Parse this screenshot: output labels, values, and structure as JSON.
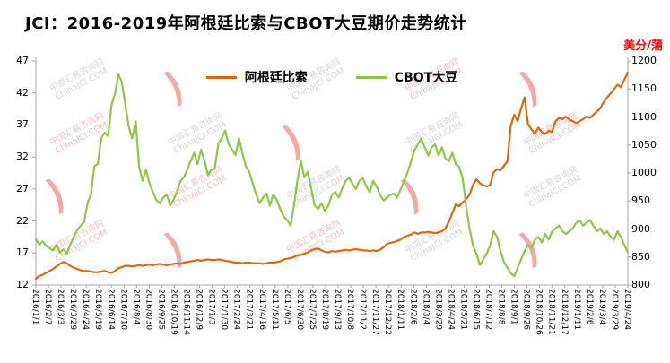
{
  "title": "JCI：2016-2019年阿根廷比索与CBOT大豆期价走势统计",
  "unit_right": "美分/蒲",
  "watermark": {
    "line1": "中国汇易咨询网",
    "line2": "ChinaJCI.COM"
  },
  "legend": [
    {
      "label": "阿根廷比索",
      "color": "#E0660B"
    },
    {
      "label": "CBOT大豆",
      "color": "#8FC648"
    }
  ],
  "chart_data": {
    "type": "line",
    "title": "JCI：2016-2019年阿根廷比索与CBOT大豆期价走势统计",
    "right_axis_unit": "美分/蒲",
    "grid": false,
    "legend_position": "top-center",
    "left_axis": {
      "min": 12,
      "max": 47,
      "ticks": [
        12,
        17,
        22,
        27,
        32,
        37,
        42,
        47
      ]
    },
    "right_axis": {
      "min": 800,
      "max": 1200,
      "ticks": [
        800,
        850,
        900,
        950,
        1000,
        1050,
        1100,
        1150,
        1200
      ]
    },
    "x_labels": [
      "2016/1/1",
      "2016/2/7",
      "2016/3/3",
      "2016/3/29",
      "2016/4/24",
      "2016/5/19",
      "2016/6/14",
      "2016/7/10",
      "2016/8/4",
      "2016/8/30",
      "2016/9/25",
      "2016/10/19",
      "2016/11/14",
      "2016/12/9",
      "2017/1/3",
      "2017/1/30",
      "2017/2/24",
      "2017/3/21",
      "2017/4/16",
      "2017/5/11",
      "2017/6/5",
      "2017/6/30",
      "2017/7/25",
      "2017/8/19",
      "2017/9/13",
      "2017/10/8",
      "2017/11/2",
      "2017/11/27",
      "2017/12/22",
      "2018/1/11",
      "2018/2/6",
      "2018/3/4",
      "2018/3/29",
      "2018/4/24",
      "2018/5/21",
      "2018/6/15",
      "2018/7/12",
      "2018/8/8",
      "2018/9/1",
      "2018/9/26",
      "2018/10/26",
      "2018/11/21",
      "2018/12/17",
      "2019/1/11",
      "2019/2/6",
      "2019/3/4",
      "2019/3/29",
      "2019/4/24"
    ],
    "series": [
      {
        "name": "阿根廷比索",
        "axis": "left",
        "color": "#E0660B",
        "values": [
          13.0,
          13.4,
          13.6,
          13.9,
          14.2,
          14.5,
          14.9,
          15.3,
          15.6,
          15.4,
          15.0,
          14.7,
          14.5,
          14.3,
          14.2,
          14.2,
          14.1,
          14.0,
          14.0,
          14.1,
          14.2,
          14.0,
          13.9,
          14.2,
          14.6,
          14.8,
          15.0,
          15.0,
          14.9,
          15.0,
          15.1,
          15.0,
          15.1,
          15.2,
          15.1,
          15.2,
          15.3,
          15.2,
          15.1,
          15.2,
          15.3,
          15.4,
          15.3,
          15.5,
          15.6,
          15.7,
          15.8,
          15.9,
          15.8,
          15.9,
          16.0,
          15.9,
          15.9,
          16.0,
          15.9,
          15.8,
          15.7,
          15.6,
          15.5,
          15.5,
          15.4,
          15.5,
          15.5,
          15.4,
          15.4,
          15.4,
          15.3,
          15.4,
          15.5,
          15.5,
          15.6,
          15.7,
          16.0,
          16.1,
          16.2,
          16.4,
          16.6,
          16.7,
          16.9,
          17.1,
          17.4,
          17.6,
          17.7,
          17.4,
          17.2,
          17.1,
          17.3,
          17.2,
          17.3,
          17.4,
          17.5,
          17.4,
          17.5,
          17.6,
          17.5,
          17.4,
          17.4,
          17.3,
          17.4,
          17.3,
          17.5,
          17.9,
          18.4,
          18.6,
          18.7,
          18.9,
          19.1,
          19.5,
          19.7,
          19.9,
          20.2,
          20.0,
          20.2,
          20.2,
          20.3,
          20.2,
          20.1,
          20.2,
          20.4,
          20.8,
          21.9,
          23.2,
          24.6,
          24.3,
          24.9,
          25.4,
          26.1,
          27.6,
          28.5,
          27.9,
          27.6,
          27.4,
          27.6,
          29.6,
          30.1,
          29.9,
          30.6,
          31.3,
          36.9,
          38.6,
          37.6,
          39.6,
          41.3,
          37.1,
          36.3,
          35.6,
          36.6,
          35.9,
          35.6,
          36.1,
          35.9,
          37.6,
          38.1,
          37.9,
          38.3,
          37.8,
          37.6,
          37.3,
          37.6,
          37.9,
          38.3,
          38.1,
          38.6,
          39.1,
          39.6,
          40.6,
          41.3,
          41.9,
          42.6,
          43.3,
          42.9,
          44.1,
          45.2
        ]
      },
      {
        "name": "CBOT大豆",
        "axis": "right",
        "color": "#8FC648",
        "values": [
          882,
          872,
          878,
          870,
          866,
          862,
          872,
          858,
          864,
          856,
          872,
          886,
          898,
          906,
          912,
          946,
          962,
          1012,
          1016,
          1062,
          1072,
          1066,
          1122,
          1142,
          1176,
          1162,
          1122,
          1082,
          1062,
          1092,
          1012,
          986,
          1006,
          982,
          966,
          952,
          946,
          956,
          962,
          942,
          952,
          966,
          986,
          992,
          1006,
          1022,
          1036,
          1016,
          1042,
          1022,
          996,
          1006,
          1008,
          1052,
          1062,
          1076,
          1052,
          1042,
          1032,
          1062,
          1036,
          1012,
          1002,
          982,
          962,
          946,
          956,
          963,
          942,
          962,
          952,
          936,
          922,
          916,
          906,
          942,
          986,
          1022,
          992,
          1002,
          972,
          942,
          936,
          946,
          932,
          942,
          961,
          966,
          956,
          972,
          986,
          991,
          981,
          971,
          986,
          991,
          976,
          966,
          986,
          976,
          961,
          951,
          956,
          961,
          963,
          956,
          971,
          986,
          1001,
          1021,
          1041,
          1051,
          1061,
          1046,
          1031,
          1046,
          1051,
          1031,
          1046,
          1026,
          1021,
          1036,
          1016,
          1011,
          991,
          941,
          901,
          871,
          856,
          836,
          846,
          856,
          871,
          896,
          886,
          861,
          841,
          831,
          821,
          816,
          831,
          846,
          861,
          871,
          866,
          881,
          886,
          876,
          891,
          881,
          896,
          901,
          906,
          896,
          891,
          896,
          901,
          911,
          916,
          906,
          911,
          916,
          906,
          896,
          901,
          891,
          896,
          886,
          881,
          896,
          886,
          871,
          858
        ]
      }
    ]
  }
}
